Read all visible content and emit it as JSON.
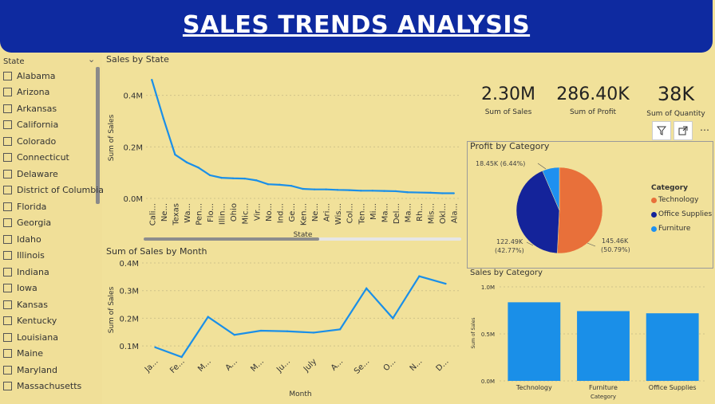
{
  "header": {
    "title": "SALES TRENDS ANALYSIS"
  },
  "slicer": {
    "title": "State",
    "items": [
      "Alabama",
      "Arizona",
      "Arkansas",
      "California",
      "Colorado",
      "Connecticut",
      "Delaware",
      "District of Columbia",
      "Florida",
      "Georgia",
      "Idaho",
      "Illinois",
      "Indiana",
      "Iowa",
      "Kansas",
      "Kentucky",
      "Louisiana",
      "Maine",
      "Maryland",
      "Massachusetts"
    ]
  },
  "kpis": [
    {
      "value": "2.30M",
      "label": "Sum of Sales"
    },
    {
      "value": "286.40K",
      "label": "Sum of Profit"
    },
    {
      "value": "38K",
      "label": "Sum of Quantity"
    }
  ],
  "toolbar": {
    "filter_icon": "filter-icon",
    "focus_icon": "focus-mode-icon",
    "more_icon": "more-options-icon"
  },
  "colors": {
    "banner": "#0e2aa0",
    "line": "#1a8fe8",
    "technology": "#e8703a",
    "office_supplies": "#14239a",
    "furniture": "#1e90f0",
    "bar": "#1a8fe8",
    "background": "#f1e19a"
  },
  "chart_data": [
    {
      "id": "sales-by-state",
      "type": "line",
      "title": "Sales by State",
      "xlabel": "State",
      "ylabel": "Sum of Sales",
      "yticks": [
        "0.0M",
        "0.2M",
        "0.4M"
      ],
      "ylim": [
        0,
        0.47
      ],
      "categories": [
        "Cali...",
        "Ne...",
        "Texas",
        "Wa...",
        "Pen...",
        "Flo...",
        "Illin...",
        "Ohio",
        "Mic...",
        "Vir...",
        "No...",
        "Ind...",
        "Ge...",
        "Ken...",
        "Ne...",
        "Ari...",
        "Wis...",
        "Col...",
        "Ten...",
        "Mi...",
        "Ma...",
        "Del...",
        "Ma...",
        "Rh...",
        "Mis...",
        "Okl...",
        "Ala..."
      ],
      "values": [
        0.46,
        0.31,
        0.17,
        0.14,
        0.12,
        0.09,
        0.08,
        0.078,
        0.077,
        0.07,
        0.055,
        0.053,
        0.049,
        0.037,
        0.035,
        0.035,
        0.033,
        0.032,
        0.03,
        0.03,
        0.029,
        0.028,
        0.024,
        0.023,
        0.022,
        0.02,
        0.02
      ]
    },
    {
      "id": "sales-by-month",
      "type": "line",
      "title": "Sum of Sales by Month",
      "xlabel": "Month",
      "ylabel": "Sum of Sales",
      "yticks": [
        "0.1M",
        "0.2M",
        "0.3M",
        "0.4M"
      ],
      "ylim": [
        0.06,
        0.4
      ],
      "categories": [
        "Ja...",
        "Fe...",
        "M...",
        "A...",
        "M...",
        "Ju...",
        "July",
        "A...",
        "Se...",
        "O...",
        "N...",
        "D..."
      ],
      "values": [
        0.095,
        0.06,
        0.205,
        0.14,
        0.155,
        0.153,
        0.148,
        0.16,
        0.308,
        0.2,
        0.352,
        0.325
      ]
    },
    {
      "id": "profit-by-category",
      "type": "pie",
      "title": "Profit by Category",
      "legend_title": "Category",
      "legend_position": "right",
      "slices": [
        {
          "name": "Technology",
          "value": 145.46,
          "label": "145.46K",
          "pct": "(50.79%)"
        },
        {
          "name": "Office Supplies",
          "value": 122.49,
          "label": "122.49K",
          "pct": "(42.77%)"
        },
        {
          "name": "Furniture",
          "value": 18.45,
          "label": "18.45K (6.44%)",
          "pct": ""
        }
      ]
    },
    {
      "id": "sales-by-category",
      "type": "bar",
      "title": "Sales by Category",
      "xlabel": "Category",
      "ylabel": "Sum of Sales",
      "yticks": [
        "0.0M",
        "0.5M",
        "1.0M"
      ],
      "ylim": [
        0,
        1.0
      ],
      "categories": [
        "Technology",
        "Furniture",
        "Office Supplies"
      ],
      "values": [
        0.836,
        0.742,
        0.719
      ]
    }
  ]
}
